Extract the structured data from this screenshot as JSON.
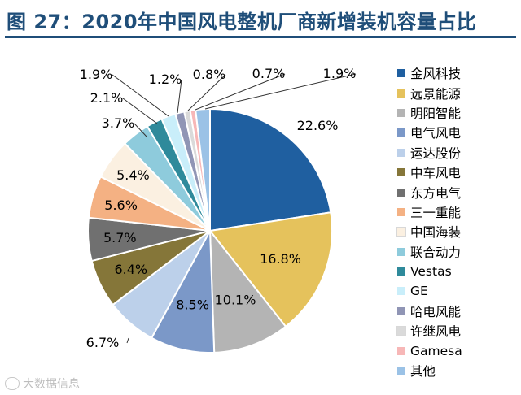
{
  "title": "图  27：2020年中国风电整机厂商新增装机容量占比",
  "watermark": "大数据信息",
  "chart_data": {
    "type": "pie",
    "title": "图  27：2020年中国风电整机厂商新增装机容量占比",
    "start": "12 o'clock",
    "direction": "clockwise",
    "legend_position": "right",
    "slices": [
      {
        "name": "金风科技",
        "value": 22.6,
        "label": "22.6%",
        "color": "#1f5fa0"
      },
      {
        "name": "远景能源",
        "value": 16.8,
        "label": "16.8%",
        "color": "#e5c25c"
      },
      {
        "name": "明阳智能",
        "value": 10.1,
        "label": "10.1%",
        "color": "#b4b4b4"
      },
      {
        "name": "电气风电",
        "value": 8.5,
        "label": "8.5%",
        "color": "#7b98c8"
      },
      {
        "name": "运达股份",
        "value": 6.7,
        "label": "6.7%",
        "color": "#bcd0ea"
      },
      {
        "name": "中车风电",
        "value": 6.4,
        "label": "6.4%",
        "color": "#857639"
      },
      {
        "name": "东方电气",
        "value": 5.7,
        "label": "5.7%",
        "color": "#707070"
      },
      {
        "name": "三一重能",
        "value": 5.6,
        "label": "5.6%",
        "color": "#f4b183"
      },
      {
        "name": "中国海装",
        "value": 5.4,
        "label": "5.4%",
        "color": "#fbf0e1"
      },
      {
        "name": "联合动力",
        "value": 3.7,
        "label": "3.7%",
        "color": "#8ecbdc"
      },
      {
        "name": "Vestas",
        "value": 2.1,
        "label": "2.1%",
        "color": "#2f8a9b"
      },
      {
        "name": "GE",
        "value": 1.9,
        "label": "1.9%",
        "color": "#c9eefa"
      },
      {
        "name": "哈电风能",
        "value": 1.2,
        "label": "1.2%",
        "color": "#9095b5"
      },
      {
        "name": "许继风电",
        "value": 0.8,
        "label": "0.8%",
        "color": "#dadada"
      },
      {
        "name": "Gamesa",
        "value": 0.7,
        "label": "0.7%",
        "color": "#f7b7b7"
      },
      {
        "name": "其他",
        "value": 1.9,
        "label": "1.9%",
        "color": "#9bc2e6"
      }
    ]
  }
}
